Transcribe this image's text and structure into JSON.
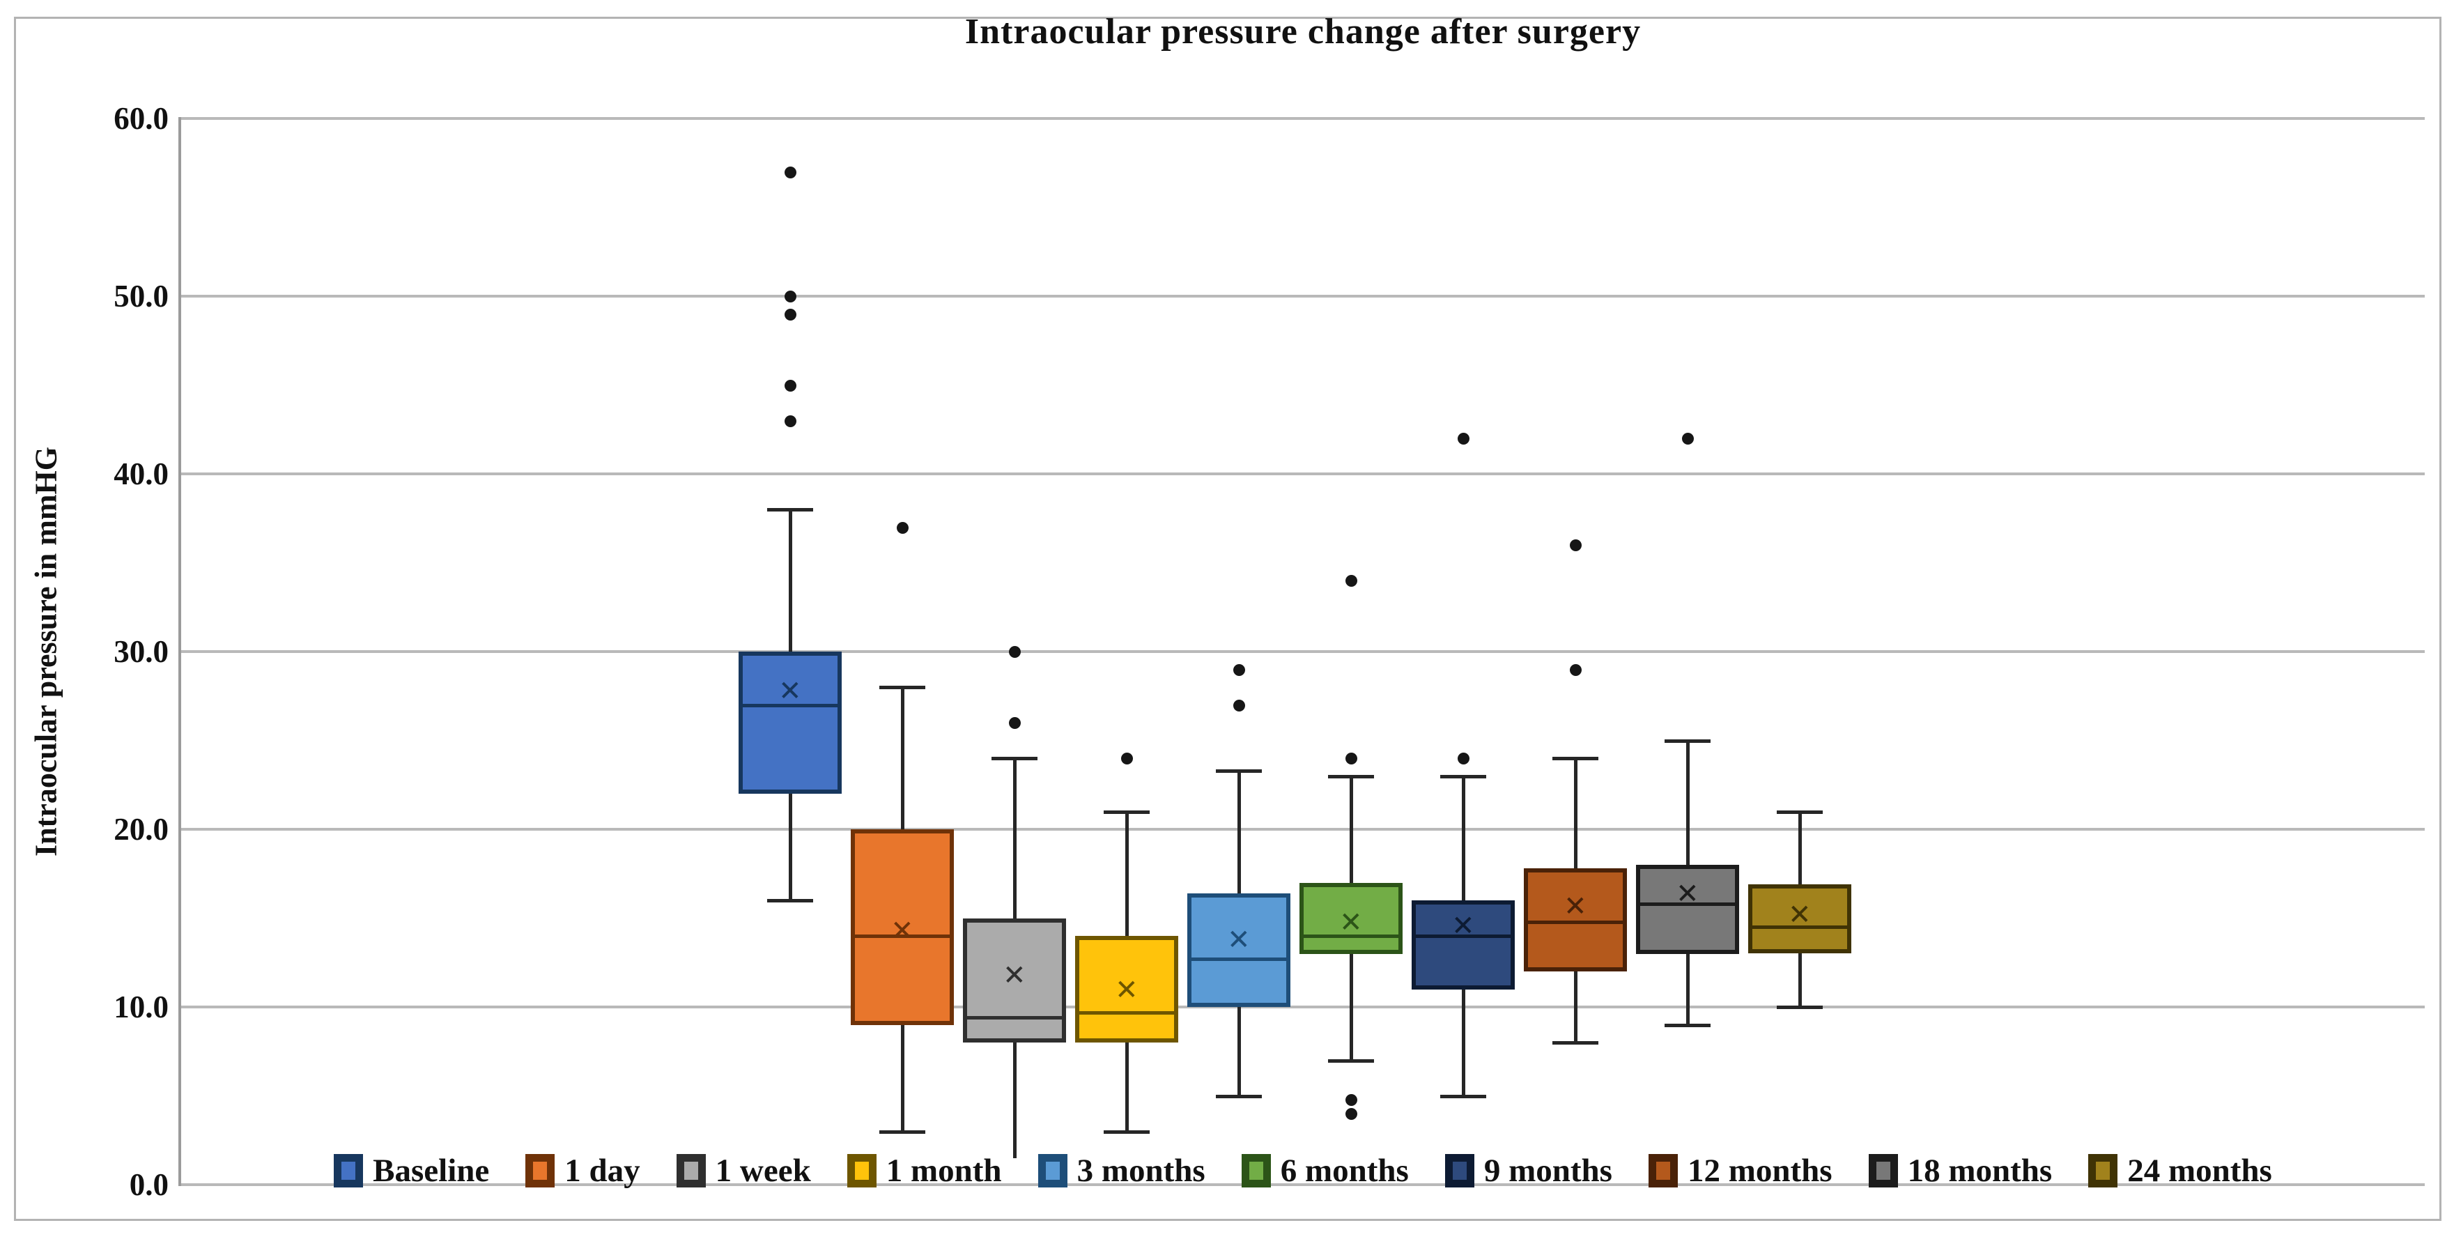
{
  "chart_data": {
    "type": "box",
    "title": "Intraocular pressure change after surgery",
    "ylabel": "Intraocular pressure in mmHG",
    "xlabel": "",
    "ylim": [
      0,
      60
    ],
    "ytick_step": 10,
    "ytick_labels": [
      "0.0",
      "10.0",
      "20.0",
      "30.0",
      "40.0",
      "50.0",
      "60.0"
    ],
    "grid": "horizontal",
    "legend_position": "bottom",
    "mean_marker_glyph": "×",
    "outlier_color": "#161616",
    "whisker_color": "#262626",
    "categories": [
      "Baseline",
      "1 day",
      "1 week",
      "1 month",
      "3 months",
      "6 months",
      "9 months",
      "12 months",
      "18 months",
      "24 months"
    ],
    "series": [
      {
        "name": "Baseline",
        "fill": "#4472C4",
        "border": "#17375E",
        "min": 16,
        "q1": 22,
        "median": 27,
        "mean": 27.8,
        "q3": 30,
        "max": 38,
        "outliers": [
          43,
          45,
          49,
          50,
          57
        ],
        "min_cap": true
      },
      {
        "name": "1 day",
        "fill": "#E8762C",
        "border": "#6F3208",
        "min": 3,
        "q1": 9,
        "median": 14,
        "mean": 14.3,
        "q3": 20,
        "max": 28,
        "outliers": [
          37
        ],
        "min_cap": true
      },
      {
        "name": "1 week",
        "fill": "#ABABAB",
        "border": "#2F2F2F",
        "min": 1.5,
        "q1": 8,
        "median": 9.4,
        "mean": 11.8,
        "q3": 15,
        "max": 24,
        "outliers": [
          26,
          30
        ],
        "min_cap": false
      },
      {
        "name": "1 month",
        "fill": "#FFC30B",
        "border": "#6E5600",
        "min": 3,
        "q1": 8,
        "median": 9.7,
        "mean": 11.0,
        "q3": 14,
        "max": 21,
        "outliers": [
          24
        ],
        "min_cap": true
      },
      {
        "name": "3 months",
        "fill": "#5B9BD5",
        "border": "#1E4E79",
        "min": 5,
        "q1": 10,
        "median": 12.7,
        "mean": 13.8,
        "q3": 16.4,
        "max": 23.3,
        "outliers": [
          27,
          29
        ],
        "min_cap": true
      },
      {
        "name": "6 months",
        "fill": "#72AD46",
        "border": "#2C5418",
        "min": 7,
        "q1": 13,
        "median": 14,
        "mean": 14.8,
        "q3": 17,
        "max": 23,
        "outliers": [
          24,
          34,
          4.8,
          4
        ],
        "min_cap": true
      },
      {
        "name": "9 months",
        "fill": "#2E4A7D",
        "border": "#0D1B33",
        "min": 5,
        "q1": 11,
        "median": 14,
        "mean": 14.6,
        "q3": 16,
        "max": 23,
        "outliers": [
          24,
          42
        ],
        "min_cap": true
      },
      {
        "name": "12 months",
        "fill": "#B4591C",
        "border": "#4A2208",
        "min": 8,
        "q1": 12,
        "median": 14.8,
        "mean": 15.7,
        "q3": 17.8,
        "max": 24,
        "outliers": [
          29,
          36
        ],
        "min_cap": true
      },
      {
        "name": "18 months",
        "fill": "#787878",
        "border": "#1C1C1C",
        "min": 9,
        "q1": 13,
        "median": 15.8,
        "mean": 16.4,
        "q3": 18,
        "max": 25,
        "outliers": [
          42
        ],
        "min_cap": true
      },
      {
        "name": "24 months",
        "fill": "#A1821C",
        "border": "#403305",
        "min": 10,
        "q1": 13,
        "median": 14.5,
        "mean": 15.2,
        "q3": 16.9,
        "max": 21,
        "outliers": [],
        "min_cap": true
      }
    ]
  }
}
